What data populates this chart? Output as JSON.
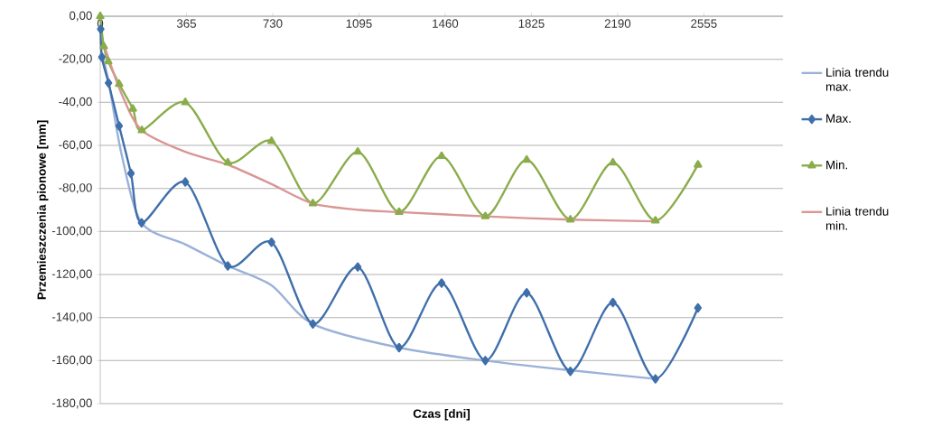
{
  "chart_data": {
    "type": "line",
    "xlabel": "Czas [dni]",
    "ylabel": "Przemieszczenia pionowe [mm]",
    "xlim": [
      0,
      2890
    ],
    "ylim": [
      -180,
      0
    ],
    "xticks": [
      0,
      365,
      730,
      1095,
      1460,
      1825,
      2190,
      2555
    ],
    "yticks": [
      {
        "value": 0,
        "label": "0,00"
      },
      {
        "value": -20,
        "label": "-20,00"
      },
      {
        "value": -40,
        "label": "-40,00"
      },
      {
        "value": -60,
        "label": "-60,00"
      },
      {
        "value": -80,
        "label": "-80,00"
      },
      {
        "value": -100,
        "label": "-100,00"
      },
      {
        "value": -120,
        "label": "-120,00"
      },
      {
        "value": -140,
        "label": "-140,00"
      },
      {
        "value": -160,
        "label": "-160,00"
      },
      {
        "value": -180,
        "label": "-180,00"
      }
    ],
    "grid": "y",
    "legend": "right",
    "series": [
      {
        "name": "Linia trendu max.",
        "color": "#9bb1d7",
        "marker": "none",
        "x": [
          5,
          35,
          90,
          175,
          360,
          540,
          725,
          900,
          1265,
          1630,
          1990,
          2350
        ],
        "values": [
          -17,
          -30,
          -64,
          -96,
          -106,
          -116,
          -125,
          -143,
          -154,
          -160,
          -164.5,
          -168.5
        ]
      },
      {
        "name": "Max.",
        "color": "#3f6fab",
        "marker": "diamond",
        "x": [
          2,
          7,
          35,
          80,
          130,
          175,
          360,
          540,
          725,
          900,
          1090,
          1265,
          1445,
          1630,
          1805,
          1990,
          2170,
          2350,
          2530
        ],
        "values": [
          -6,
          -19,
          -31,
          -51,
          -73,
          -96,
          -77,
          -116,
          -105,
          -143,
          -116.5,
          -154,
          -124,
          -160,
          -128.5,
          -165,
          -133,
          -168.5,
          -135.5
        ]
      },
      {
        "name": "Min.",
        "color": "#8aac4a",
        "marker": "triangle",
        "x": [
          0,
          15,
          34,
          80,
          138,
          176,
          360,
          540,
          725,
          900,
          1090,
          1265,
          1445,
          1630,
          1805,
          1990,
          2170,
          2350,
          2530
        ],
        "values": [
          0,
          -14,
          -21,
          -31.5,
          -43,
          -53,
          -40,
          -68,
          -58,
          -87,
          -63,
          -91,
          -65,
          -93,
          -66.7,
          -94.5,
          -68,
          -95,
          -69
        ]
      },
      {
        "name": "Linia trendu min.",
        "color": "#d99694",
        "marker": "none",
        "x": [
          15,
          90,
          176,
          360,
          540,
          725,
          900,
          1100,
          1265,
          1630,
          1990,
          2350
        ],
        "values": [
          -13,
          -36,
          -53,
          -63,
          -69,
          -78,
          -87,
          -90,
          -91,
          -93,
          -94.5,
          -95.3
        ]
      }
    ]
  }
}
